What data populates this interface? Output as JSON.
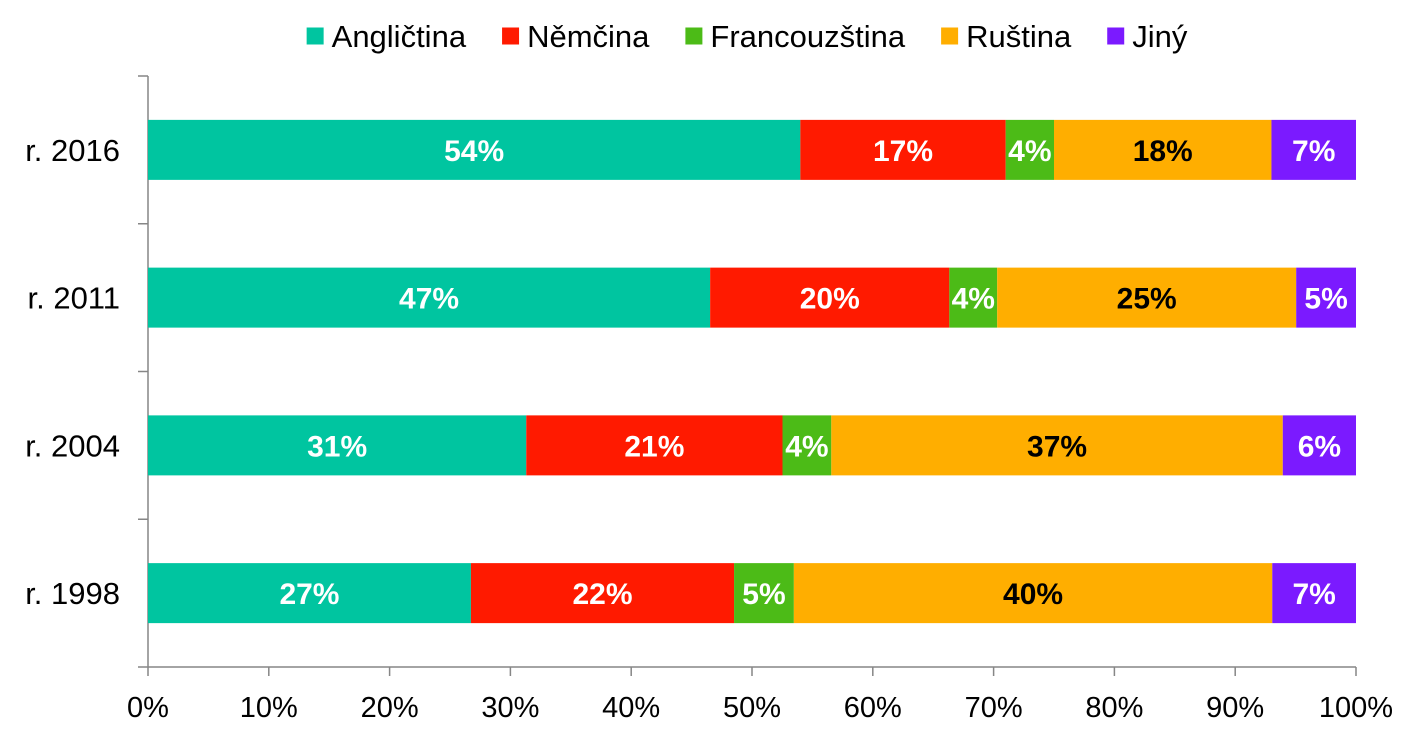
{
  "chart_data": {
    "type": "bar",
    "orientation": "horizontal",
    "stacked": true,
    "categories": [
      "r. 2016",
      "r. 2011",
      "r. 2004",
      "r. 1998"
    ],
    "series": [
      {
        "name": "Angličtina",
        "color": "#00c5a0",
        "values": [
          54,
          47,
          31,
          27
        ],
        "labels": [
          "54%",
          "47%",
          "31%",
          "27%"
        ],
        "label_color": "#ffffff"
      },
      {
        "name": "Němčina",
        "color": "#ff1a00",
        "values": [
          17,
          20,
          21,
          22
        ],
        "labels": [
          "17%",
          "20%",
          "21%",
          "22%"
        ],
        "label_color": "#ffffff"
      },
      {
        "name": "Francouzština",
        "color": "#4cbb17",
        "values": [
          4,
          4,
          4,
          5
        ],
        "labels": [
          "4%",
          "4%",
          "4%",
          "5%"
        ],
        "label_color": "#ffffff"
      },
      {
        "name": "Ruština",
        "color": "#ffae00",
        "values": [
          18,
          25,
          37,
          40
        ],
        "labels": [
          "18%",
          "25%",
          "37%",
          "40%"
        ],
        "label_color": "#000000"
      },
      {
        "name": "Jiný",
        "color": "#7b1aff",
        "values": [
          7,
          5,
          6,
          7
        ],
        "labels": [
          "7%",
          "5%",
          "6%",
          "7%"
        ],
        "label_color": "#ffffff"
      }
    ],
    "xlim": [
      0,
      100
    ],
    "x_ticks": [
      "0%",
      "10%",
      "20%",
      "30%",
      "40%",
      "50%",
      "60%",
      "70%",
      "80%",
      "90%",
      "100%"
    ],
    "grid": false,
    "legend_position": "top"
  }
}
